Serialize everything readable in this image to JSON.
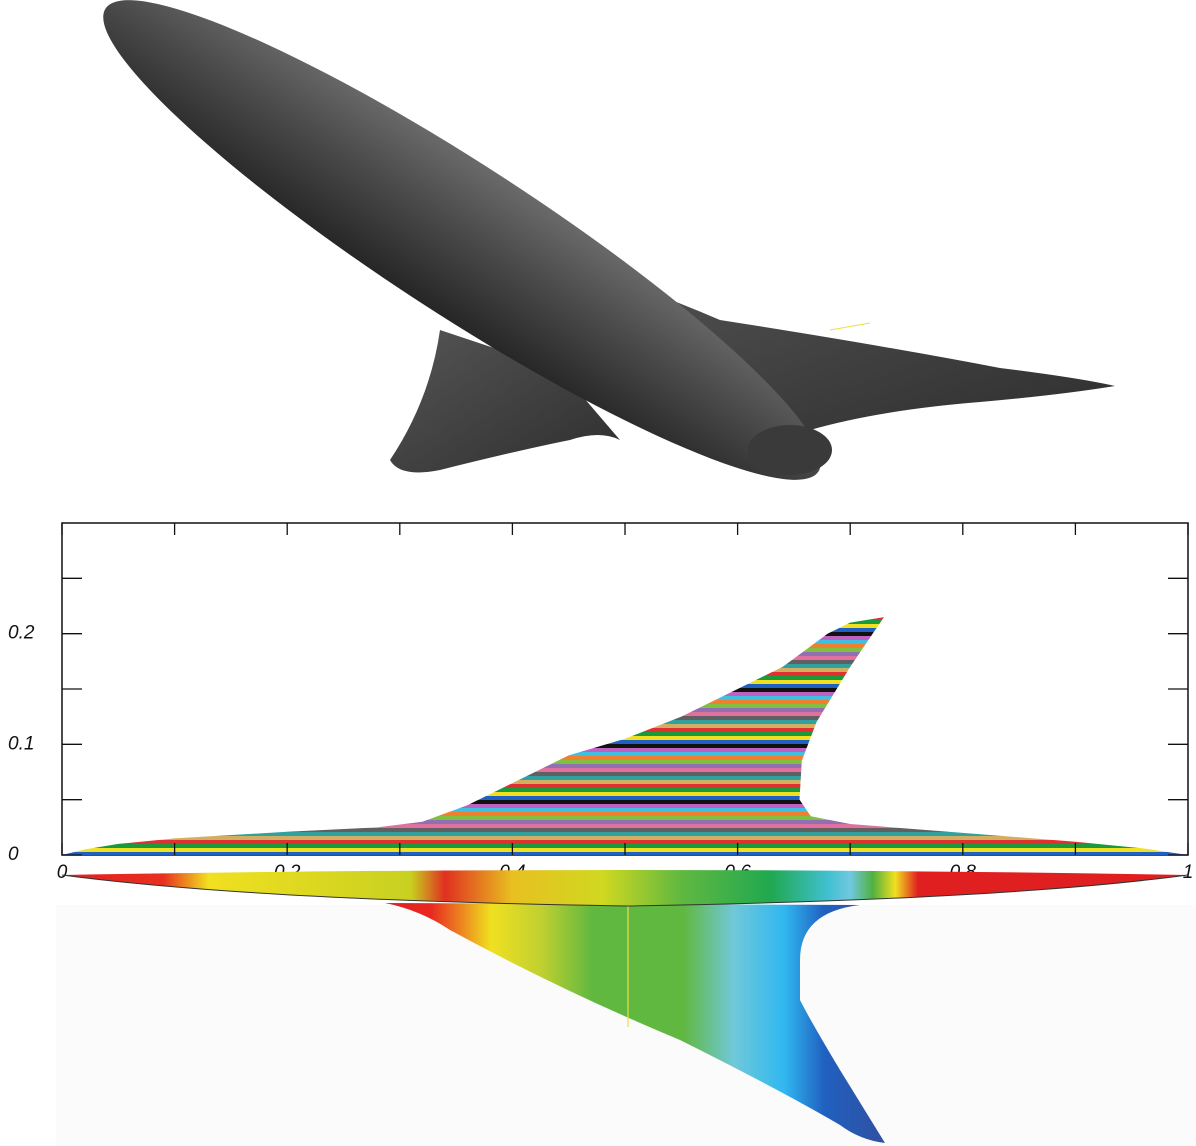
{
  "chart_data": {
    "type": "area",
    "outline": {
      "x": [
        0,
        0.02,
        0.05,
        0.1,
        0.2,
        0.28,
        0.32,
        0.36,
        0.4,
        0.45,
        0.5,
        0.55,
        0.6,
        0.64,
        0.68,
        0.7,
        0.73,
        0.72,
        0.7,
        0.67,
        0.657,
        0.655,
        0.665,
        0.7,
        0.8,
        0.9,
        0.96,
        1
      ],
      "y": [
        0,
        0.005,
        0.01,
        0.015,
        0.021,
        0.025,
        0.03,
        0.045,
        0.065,
        0.09,
        0.105,
        0.125,
        0.15,
        0.17,
        0.2,
        0.21,
        0.215,
        0.2,
        0.17,
        0.12,
        0.085,
        0.05,
        0.035,
        0.028,
        0.02,
        0.012,
        0.006,
        0
      ]
    },
    "stripe_colors": [
      "#e03030",
      "#1a9a3a",
      "#f0e020",
      "#2060c0",
      "#111111",
      "#c060c0",
      "#40c0e0",
      "#f08030",
      "#80c040",
      "#9070b0",
      "#e070a0",
      "#606060",
      "#30a0a0",
      "#d0b060"
    ],
    "xlim": [
      0,
      1
    ],
    "ylim": [
      0,
      0.3
    ],
    "xticks": [
      0,
      0.2,
      0.4,
      0.6,
      0.8,
      1
    ],
    "xminor_ticks": [
      0.1,
      0.3,
      0.5,
      0.7,
      0.9
    ],
    "yticks": [
      0,
      0.1,
      0.2
    ],
    "yminor_ticks": [
      0.05,
      0.15,
      0.25
    ]
  }
}
